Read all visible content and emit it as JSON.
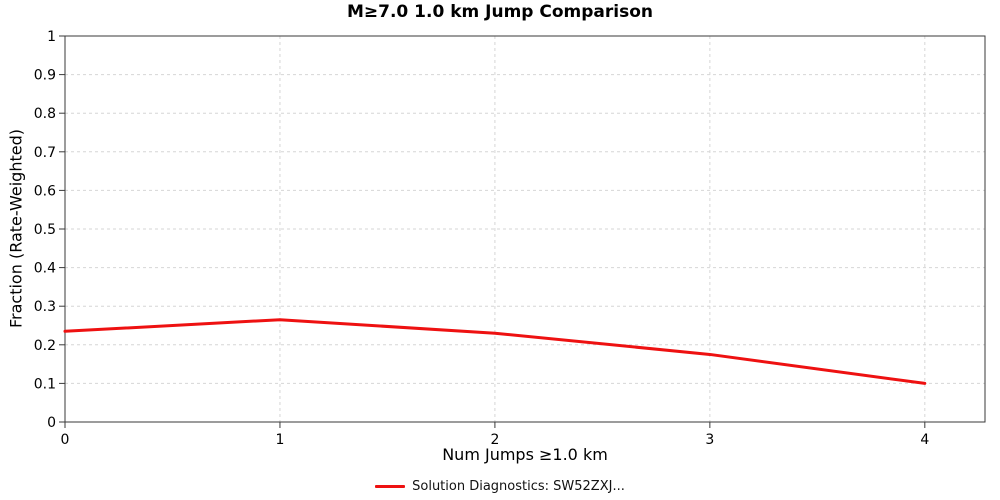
{
  "chart_data": {
    "type": "line",
    "title": "M≥7.0 1.0 km Jump Comparison",
    "xlabel": "Num Jumps ≥1.0 km",
    "ylabel": "Fraction (Rate-Weighted)",
    "x": [
      0,
      1,
      2,
      3,
      4
    ],
    "series": [
      {
        "name": "Solution Diagnostics: SW52ZXJ...",
        "color": "#ee1111",
        "values": [
          0.235,
          0.265,
          0.23,
          0.175,
          0.1
        ]
      }
    ],
    "xlim": [
      0,
      4.28
    ],
    "ylim": [
      0,
      1
    ],
    "xticks": [
      0,
      1,
      2,
      3,
      4
    ],
    "xtick_labels": [
      "0",
      "1",
      "2",
      "3",
      "4"
    ],
    "yticks": [
      0,
      0.1,
      0.2,
      0.3,
      0.4,
      0.5,
      0.6,
      0.7,
      0.8,
      0.9,
      1
    ],
    "ytick_labels": [
      "0",
      "0.1",
      "0.2",
      "0.3",
      "0.4",
      "0.5",
      "0.6",
      "0.7",
      "0.8",
      "0.9",
      "1"
    ],
    "grid": "dashed",
    "legend_position": "bottom-center",
    "colors": {
      "grid": "#d6d6d6",
      "frame": "#3a3a3a",
      "text": "#000000"
    }
  }
}
